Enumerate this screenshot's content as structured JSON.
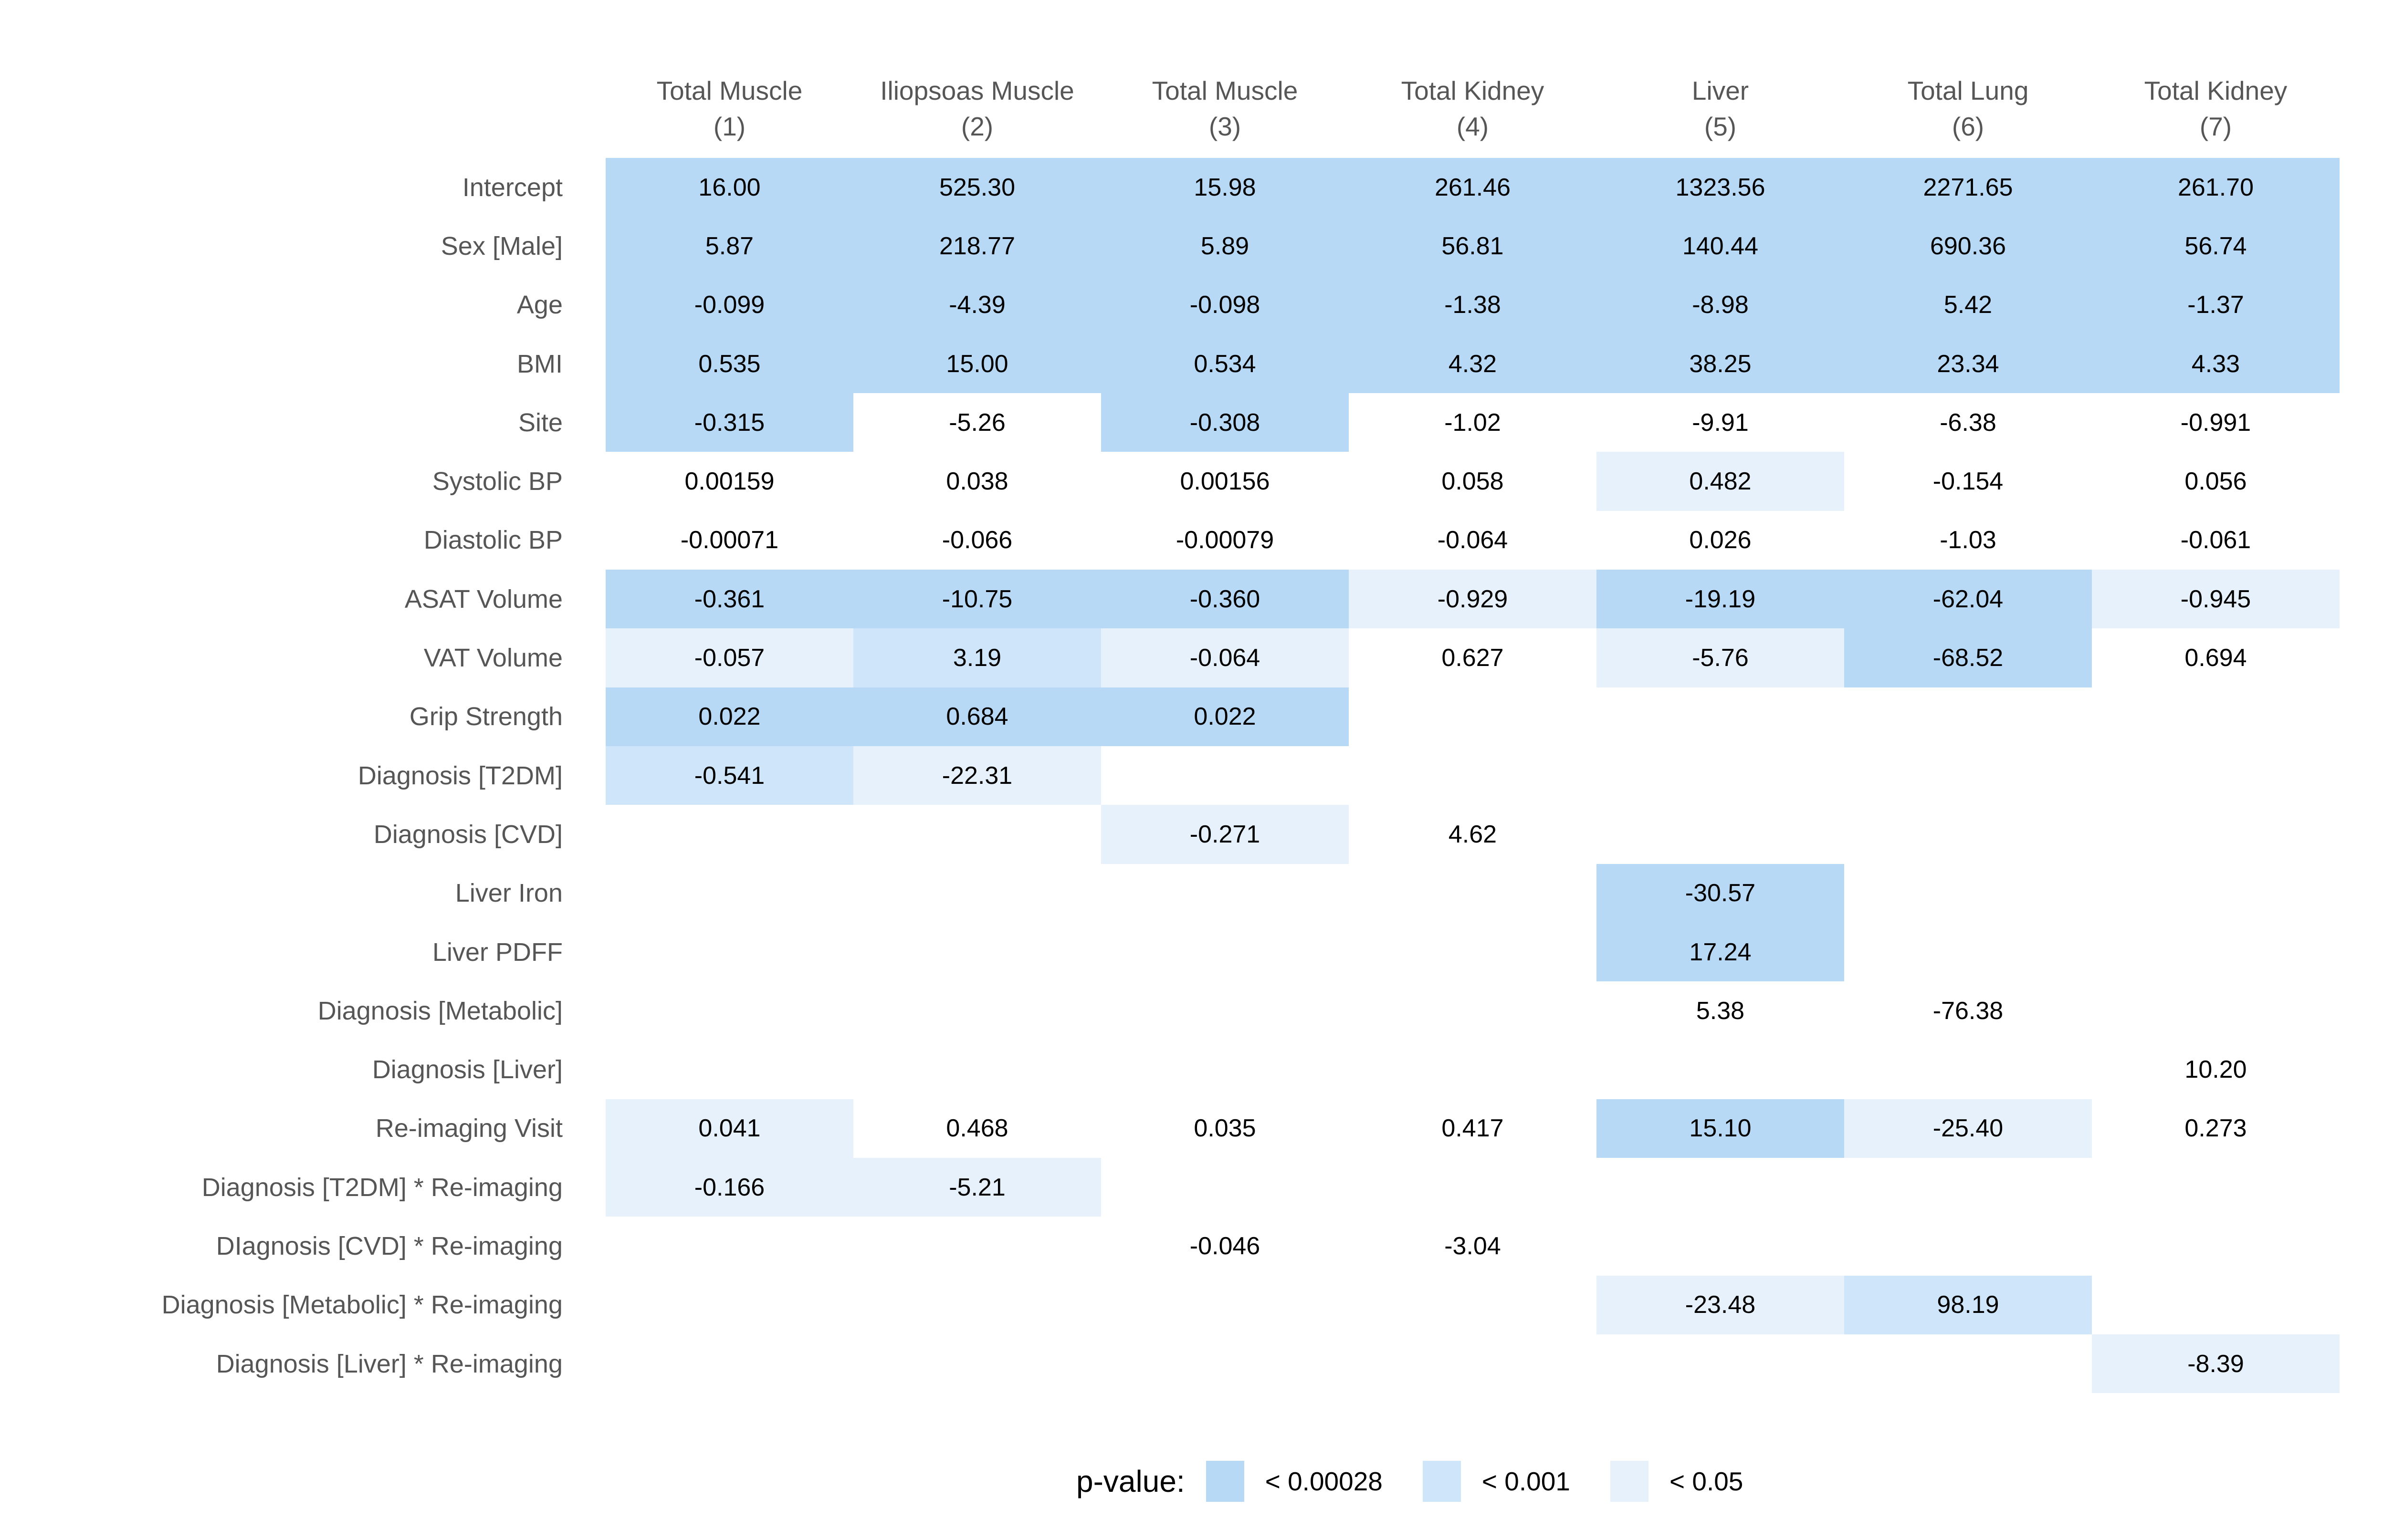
{
  "colors": {
    "p1": "#b7d9f6",
    "p2": "#cfe5fa",
    "p3": "#e7f1fc",
    "header_text": "#565656",
    "row_label_text": "#565656",
    "value_text": "#000000",
    "background": "#ffffff"
  },
  "chart_data": {
    "type": "heatmap",
    "legend": {
      "title": "p-value:",
      "items": [
        {
          "label": "< 0.00028",
          "class": "p1"
        },
        {
          "label": "< 0.001",
          "class": "p2"
        },
        {
          "label": "< 0.05",
          "class": "p3"
        }
      ]
    },
    "columns": [
      {
        "name": "Total Muscle",
        "number": "(1)"
      },
      {
        "name": "Iliopsoas Muscle",
        "number": "(2)"
      },
      {
        "name": "Total Muscle",
        "number": "(3)"
      },
      {
        "name": "Total Kidney",
        "number": "(4)"
      },
      {
        "name": "Liver",
        "number": "(5)"
      },
      {
        "name": "Total Lung",
        "number": "(6)"
      },
      {
        "name": "Total Kidney",
        "number": "(7)"
      }
    ],
    "rows": [
      {
        "label": "Intercept",
        "cells": [
          {
            "v": "16.00",
            "p": "p1"
          },
          {
            "v": "525.30",
            "p": "p1"
          },
          {
            "v": "15.98",
            "p": "p1"
          },
          {
            "v": "261.46",
            "p": "p1"
          },
          {
            "v": "1323.56",
            "p": "p1"
          },
          {
            "v": "2271.65",
            "p": "p1"
          },
          {
            "v": "261.70",
            "p": "p1"
          }
        ]
      },
      {
        "label": "Sex [Male]",
        "cells": [
          {
            "v": "5.87",
            "p": "p1"
          },
          {
            "v": "218.77",
            "p": "p1"
          },
          {
            "v": "5.89",
            "p": "p1"
          },
          {
            "v": "56.81",
            "p": "p1"
          },
          {
            "v": "140.44",
            "p": "p1"
          },
          {
            "v": "690.36",
            "p": "p1"
          },
          {
            "v": "56.74",
            "p": "p1"
          }
        ]
      },
      {
        "label": "Age",
        "cells": [
          {
            "v": "-0.099",
            "p": "p1"
          },
          {
            "v": "-4.39",
            "p": "p1"
          },
          {
            "v": "-0.098",
            "p": "p1"
          },
          {
            "v": "-1.38",
            "p": "p1"
          },
          {
            "v": "-8.98",
            "p": "p1"
          },
          {
            "v": "5.42",
            "p": "p1"
          },
          {
            "v": "-1.37",
            "p": "p1"
          }
        ]
      },
      {
        "label": "BMI",
        "cells": [
          {
            "v": "0.535",
            "p": "p1"
          },
          {
            "v": "15.00",
            "p": "p1"
          },
          {
            "v": "0.534",
            "p": "p1"
          },
          {
            "v": "4.32",
            "p": "p1"
          },
          {
            "v": "38.25",
            "p": "p1"
          },
          {
            "v": "23.34",
            "p": "p1"
          },
          {
            "v": "4.33",
            "p": "p1"
          }
        ]
      },
      {
        "label": "Site",
        "cells": [
          {
            "v": "-0.315",
            "p": "p1"
          },
          {
            "v": "-5.26",
            "p": "ns"
          },
          {
            "v": "-0.308",
            "p": "p1"
          },
          {
            "v": "-1.02",
            "p": "ns"
          },
          {
            "v": "-9.91",
            "p": "ns"
          },
          {
            "v": "-6.38",
            "p": "ns"
          },
          {
            "v": "-0.991",
            "p": "ns"
          }
        ]
      },
      {
        "label": "Systolic BP",
        "cells": [
          {
            "v": "0.00159",
            "p": "ns"
          },
          {
            "v": "0.038",
            "p": "ns"
          },
          {
            "v": "0.00156",
            "p": "ns"
          },
          {
            "v": "0.058",
            "p": "ns"
          },
          {
            "v": "0.482",
            "p": "p3"
          },
          {
            "v": "-0.154",
            "p": "ns"
          },
          {
            "v": "0.056",
            "p": "ns"
          }
        ]
      },
      {
        "label": "Diastolic BP",
        "cells": [
          {
            "v": "-0.00071",
            "p": "ns"
          },
          {
            "v": "-0.066",
            "p": "ns"
          },
          {
            "v": "-0.00079",
            "p": "ns"
          },
          {
            "v": "-0.064",
            "p": "ns"
          },
          {
            "v": "0.026",
            "p": "ns"
          },
          {
            "v": "-1.03",
            "p": "ns"
          },
          {
            "v": "-0.061",
            "p": "ns"
          }
        ]
      },
      {
        "label": "ASAT Volume",
        "cells": [
          {
            "v": "-0.361",
            "p": "p1"
          },
          {
            "v": "-10.75",
            "p": "p1"
          },
          {
            "v": "-0.360",
            "p": "p1"
          },
          {
            "v": "-0.929",
            "p": "p3"
          },
          {
            "v": "-19.19",
            "p": "p1"
          },
          {
            "v": "-62.04",
            "p": "p1"
          },
          {
            "v": "-0.945",
            "p": "p3"
          }
        ]
      },
      {
        "label": "VAT Volume",
        "cells": [
          {
            "v": "-0.057",
            "p": "p3"
          },
          {
            "v": "3.19",
            "p": "p2"
          },
          {
            "v": "-0.064",
            "p": "p3"
          },
          {
            "v": "0.627",
            "p": "ns"
          },
          {
            "v": "-5.76",
            "p": "p3"
          },
          {
            "v": "-68.52",
            "p": "p1"
          },
          {
            "v": "0.694",
            "p": "ns"
          }
        ]
      },
      {
        "label": "Grip Strength",
        "cells": [
          {
            "v": "0.022",
            "p": "p1"
          },
          {
            "v": "0.684",
            "p": "p1"
          },
          {
            "v": "0.022",
            "p": "p1"
          },
          null,
          null,
          null,
          null
        ]
      },
      {
        "label": "Diagnosis [T2DM]",
        "cells": [
          {
            "v": "-0.541",
            "p": "p2"
          },
          {
            "v": "-22.31",
            "p": "p3"
          },
          null,
          null,
          null,
          null,
          null
        ]
      },
      {
        "label": "Diagnosis [CVD]",
        "cells": [
          null,
          null,
          {
            "v": "-0.271",
            "p": "p3"
          },
          {
            "v": "4.62",
            "p": "ns"
          },
          null,
          null,
          null
        ]
      },
      {
        "label": "Liver Iron",
        "cells": [
          null,
          null,
          null,
          null,
          {
            "v": "-30.57",
            "p": "p1"
          },
          null,
          null
        ]
      },
      {
        "label": "Liver PDFF",
        "cells": [
          null,
          null,
          null,
          null,
          {
            "v": "17.24",
            "p": "p1"
          },
          null,
          null
        ]
      },
      {
        "label": "Diagnosis [Metabolic]",
        "cells": [
          null,
          null,
          null,
          null,
          {
            "v": "5.38",
            "p": "ns"
          },
          {
            "v": "-76.38",
            "p": "ns"
          },
          null
        ]
      },
      {
        "label": "Diagnosis [Liver]",
        "cells": [
          null,
          null,
          null,
          null,
          null,
          null,
          {
            "v": "10.20",
            "p": "ns"
          }
        ]
      },
      {
        "label": "Re-imaging Visit",
        "cells": [
          {
            "v": "0.041",
            "p": "p3"
          },
          {
            "v": "0.468",
            "p": "ns"
          },
          {
            "v": "0.035",
            "p": "ns"
          },
          {
            "v": "0.417",
            "p": "ns"
          },
          {
            "v": "15.10",
            "p": "p1"
          },
          {
            "v": "-25.40",
            "p": "p3"
          },
          {
            "v": "0.273",
            "p": "ns"
          }
        ]
      },
      {
        "label": "Diagnosis [T2DM] * Re-imaging",
        "cells": [
          {
            "v": "-0.166",
            "p": "p3"
          },
          {
            "v": "-5.21",
            "p": "p3"
          },
          null,
          null,
          null,
          null,
          null
        ]
      },
      {
        "label": "DIagnosis [CVD] * Re-imaging",
        "cells": [
          null,
          null,
          {
            "v": "-0.046",
            "p": "ns"
          },
          {
            "v": "-3.04",
            "p": "ns"
          },
          null,
          null,
          null
        ]
      },
      {
        "label": "Diagnosis [Metabolic] * Re-imaging",
        "cells": [
          null,
          null,
          null,
          null,
          {
            "v": "-23.48",
            "p": "p3"
          },
          {
            "v": "98.19",
            "p": "p2"
          },
          null
        ]
      },
      {
        "label": "Diagnosis [Liver] * Re-imaging",
        "cells": [
          null,
          null,
          null,
          null,
          null,
          null,
          {
            "v": "-8.39",
            "p": "p3"
          }
        ]
      }
    ]
  }
}
